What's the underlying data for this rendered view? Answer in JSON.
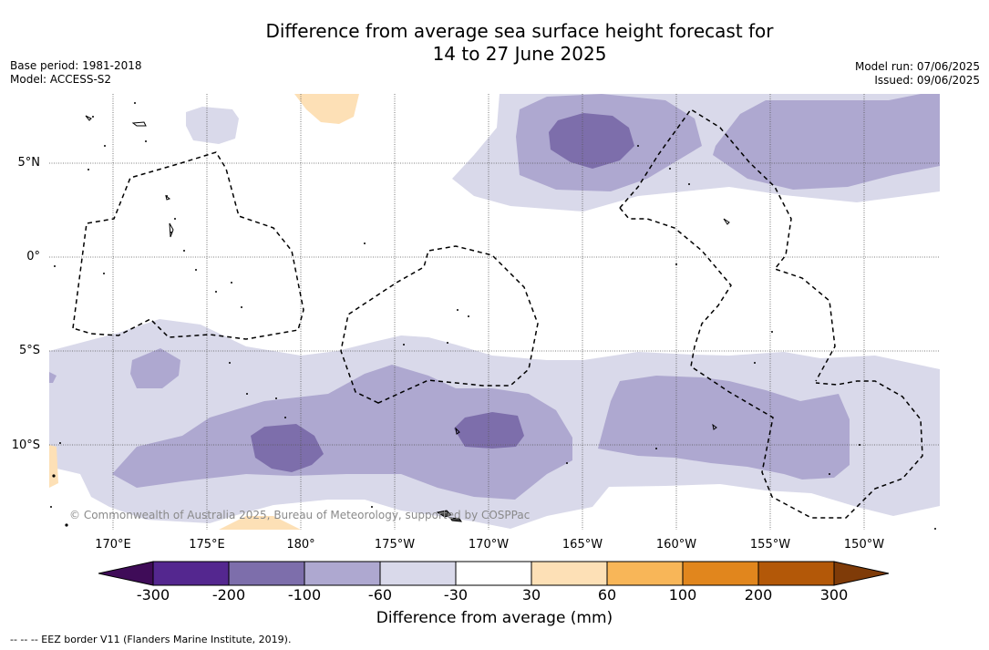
{
  "title": {
    "line1": "Difference from average sea surface height forecast for",
    "line2": "14 to 27 June 2025"
  },
  "meta": {
    "base_period": "Base period: 1981-2018",
    "model": "Model: ACCESS-S2",
    "model_run": "Model run: 07/06/2025",
    "issued": "Issued: 09/06/2025"
  },
  "map": {
    "copyright": "© Commonwealth of Australia 2025, Bureau of Meteorology, supported by COSPPac",
    "lat_labels": [
      "5°N",
      "0°",
      "5°S",
      "10°S"
    ],
    "lon_labels": [
      "170°E",
      "175°E",
      "180°",
      "175°W",
      "170°W",
      "165°W",
      "160°W",
      "155°W",
      "150°W"
    ]
  },
  "legend": {
    "ticks": [
      "-300",
      "-200",
      "-100",
      "-60",
      "-30",
      "30",
      "60",
      "100",
      "200",
      "300"
    ],
    "label": "Difference from average (mm)",
    "colors": [
      "#3f0c58",
      "#54278f",
      "#7d6eab",
      "#aea8d0",
      "#d9d9ea",
      "#ffffff",
      "#fde0b6",
      "#f8b658",
      "#e1861d",
      "#b35808",
      "#7f3b08"
    ]
  },
  "footer": "--  --  -- EEZ border V11 (Flanders Marine Institute, 2019)."
}
